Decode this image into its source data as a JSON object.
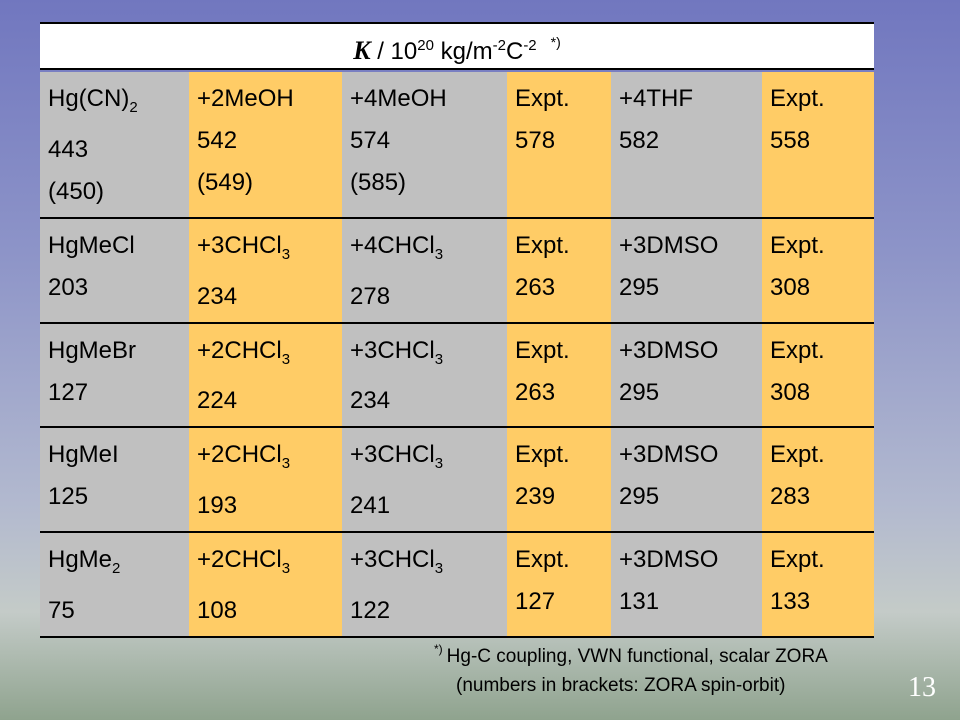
{
  "title": {
    "symbol": "K",
    "unit_text": " / 10",
    "exp1": "20",
    "mid": " kg/m",
    "exp2": "-2",
    "c": "C",
    "exp3": "-2",
    "footnote_mark": "*)"
  },
  "colors": {
    "gray": "#c0c0c0",
    "orange": "#ffcc66"
  },
  "table": {
    "rows": [
      {
        "cells": [
          {
            "lines": [
              {
                "b": "Hg(CN)",
                "s": "2"
              },
              {
                "b": "443"
              },
              {
                "b": "(450)"
              }
            ]
          },
          {
            "lines": [
              {
                "b": "+2MeOH"
              },
              {
                "b": "542"
              },
              {
                "b": "(549)"
              }
            ]
          },
          {
            "lines": [
              {
                "b": "+4MeOH"
              },
              {
                "b": "574"
              },
              {
                "b": "(585)"
              }
            ]
          },
          {
            "lines": [
              {
                "b": "Expt."
              },
              {
                "b": "578"
              }
            ]
          },
          {
            "lines": [
              {
                "b": "+4THF"
              },
              {
                "b": "582"
              }
            ]
          },
          {
            "lines": [
              {
                "b": "Expt."
              },
              {
                "b": "558"
              }
            ]
          }
        ]
      },
      {
        "cells": [
          {
            "lines": [
              {
                "b": "HgMeCl"
              },
              {
                "b": "203"
              }
            ]
          },
          {
            "lines": [
              {
                "b": "+3CHCl",
                "s": "3"
              },
              {
                "b": "234"
              }
            ]
          },
          {
            "lines": [
              {
                "b": "+4CHCl",
                "s": "3"
              },
              {
                "b": "278"
              }
            ]
          },
          {
            "lines": [
              {
                "b": "Expt."
              },
              {
                "b": "263"
              }
            ]
          },
          {
            "lines": [
              {
                "b": "+3DMSO"
              },
              {
                "b": "295"
              }
            ]
          },
          {
            "lines": [
              {
                "b": "Expt."
              },
              {
                "b": "308"
              }
            ]
          }
        ]
      },
      {
        "cells": [
          {
            "lines": [
              {
                "b": "HgMeBr"
              },
              {
                "b": "127"
              }
            ]
          },
          {
            "lines": [
              {
                "b": "+2CHCl",
                "s": "3"
              },
              {
                "b": "224"
              }
            ]
          },
          {
            "lines": [
              {
                "b": "+3CHCl",
                "s": "3"
              },
              {
                "b": "234"
              }
            ]
          },
          {
            "lines": [
              {
                "b": "Expt."
              },
              {
                "b": "263"
              }
            ]
          },
          {
            "lines": [
              {
                "b": "+3DMSO"
              },
              {
                "b": "295"
              }
            ]
          },
          {
            "lines": [
              {
                "b": "Expt."
              },
              {
                "b": "308"
              }
            ]
          }
        ]
      },
      {
        "cells": [
          {
            "lines": [
              {
                "b": "HgMeI"
              },
              {
                "b": "125"
              }
            ]
          },
          {
            "lines": [
              {
                "b": "+2CHCl",
                "s": "3"
              },
              {
                "b": "193"
              }
            ]
          },
          {
            "lines": [
              {
                "b": "+3CHCl",
                "s": "3"
              },
              {
                "b": "241"
              }
            ]
          },
          {
            "lines": [
              {
                "b": "Expt."
              },
              {
                "b": "239"
              }
            ]
          },
          {
            "lines": [
              {
                "b": "+3DMSO"
              },
              {
                "b": "295"
              }
            ]
          },
          {
            "lines": [
              {
                "b": "Expt."
              },
              {
                "b": "283"
              }
            ]
          }
        ]
      },
      {
        "cells": [
          {
            "lines": [
              {
                "b": "HgMe",
                "s": "2"
              },
              {
                "b": "75"
              }
            ]
          },
          {
            "lines": [
              {
                "b": "+2CHCl",
                "s": "3"
              },
              {
                "b": "108"
              }
            ]
          },
          {
            "lines": [
              {
                "b": "+3CHCl",
                "s": "3"
              },
              {
                "b": "122"
              }
            ]
          },
          {
            "lines": [
              {
                "b": "Expt."
              },
              {
                "b": "127"
              }
            ]
          },
          {
            "lines": [
              {
                "b": "+3DMSO"
              },
              {
                "b": "131"
              }
            ]
          },
          {
            "lines": [
              {
                "b": "Expt."
              },
              {
                "b": "133"
              }
            ]
          }
        ]
      }
    ]
  },
  "footnote": {
    "mark": "*)",
    "line1": "Hg-C coupling, VWN functional, scalar ZORA",
    "line2": "(numbers in brackets: ZORA spin-orbit)"
  },
  "page_number": "13"
}
